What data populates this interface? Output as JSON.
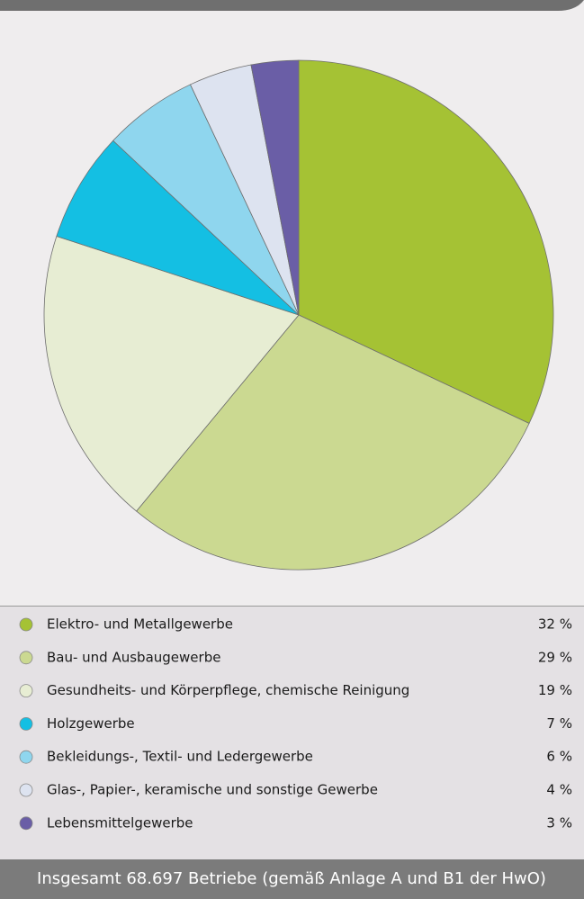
{
  "chart_data": {
    "type": "pie",
    "categories": [
      "Elektro- und Metallgewerbe",
      "Bau- und Ausbaugewerbe",
      "Gesundheits- und Körperpflege, chemische Reinigung",
      "Holzgewerbe",
      "Bekleidungs-, Textil- und Ledergewerbe",
      "Glas-, Papier-, keramische und sonstige Gewerbe",
      "Lebensmittelgewerbe"
    ],
    "values": [
      32,
      29,
      19,
      7,
      6,
      4,
      3
    ],
    "value_labels": [
      "32 %",
      "29 %",
      "19 %",
      "7 %",
      "6 %",
      "4 %",
      "3 %"
    ],
    "colors": [
      "#a5c234",
      "#cbd991",
      "#e7edd3",
      "#14bfe3",
      "#8fd6ee",
      "#dde3f0",
      "#6a5ea6"
    ],
    "caption": "Insgesamt 68.697 Betriebe (gemäß Anlage A und B1 der HwO)"
  }
}
